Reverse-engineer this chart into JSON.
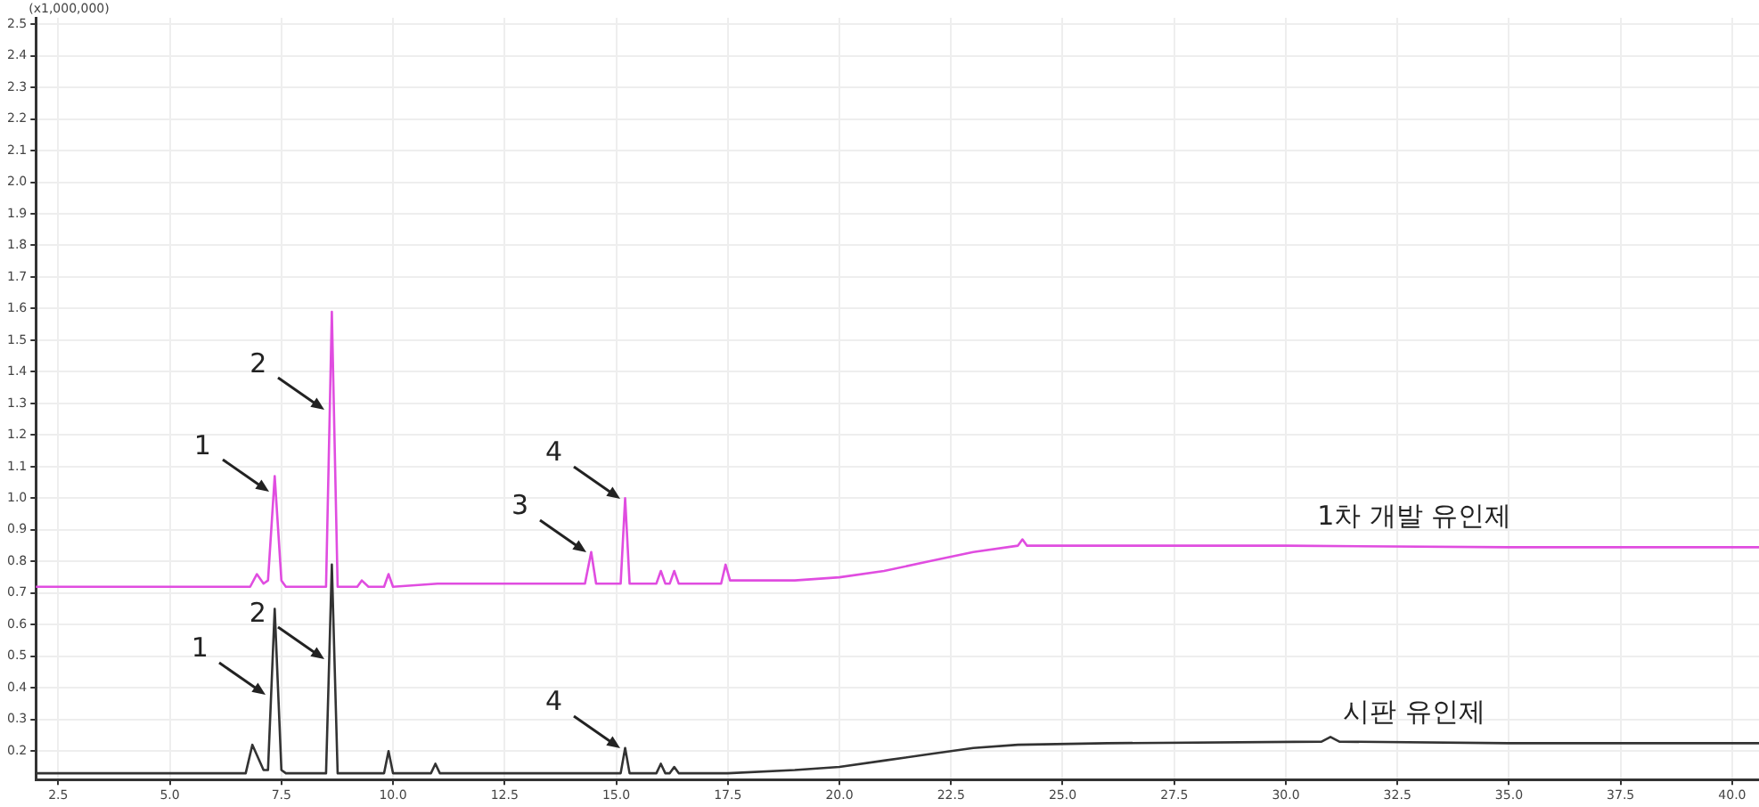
{
  "chart_data": {
    "type": "line",
    "ylabel": "(x1,000,000)",
    "xlim": [
      2.0,
      40.6
    ],
    "ylim": [
      0.11,
      2.52
    ],
    "xticks": [
      2.5,
      {
        "value": 5,
        "label": "5.0"
      },
      7.5,
      {
        "value": 10,
        "label": "10.0"
      },
      12.5,
      {
        "value": 15,
        "label": "15.0"
      },
      17.5,
      {
        "value": 20,
        "label": "20.0"
      },
      22.5,
      {
        "value": 25,
        "label": "25.0"
      },
      27.5,
      {
        "value": 30,
        "label": "30.0"
      },
      32.5,
      {
        "value": 35,
        "label": "35.0"
      },
      37.5,
      {
        "value": 40,
        "label": "40.0"
      }
    ],
    "yticks": [
      0.2,
      0.3,
      0.4,
      0.5,
      0.6,
      0.7,
      0.8,
      0.9,
      {
        "value": 1,
        "label": "1.0"
      },
      1.1,
      1.2,
      1.3,
      1.4,
      1.5,
      1.6,
      1.7,
      1.8,
      1.9,
      {
        "value": 2,
        "label": "2.0"
      },
      2.1,
      2.2,
      2.3,
      2.4,
      2.5
    ],
    "grid": true,
    "legend": false,
    "marker": "none",
    "line_style": "solid",
    "series": [
      {
        "name": "1차 개발 유인제",
        "color": "#e04de0",
        "x": [
          2.0,
          5,
          6.8,
          6.95,
          7.1,
          7.2,
          7.35,
          7.5,
          7.6,
          8.5,
          8.63,
          8.76,
          9.2,
          9.3,
          9.45,
          9.8,
          9.9,
          10.0,
          11.0,
          12.5,
          14.3,
          14.44,
          14.55,
          15.1,
          15.2,
          15.3,
          15.9,
          16.0,
          16.1,
          16.2,
          16.3,
          16.4,
          17.35,
          17.45,
          17.55,
          19,
          20,
          21,
          22,
          23,
          24,
          24.1,
          24.2,
          25,
          27.5,
          30,
          35,
          40.6
        ],
        "values": [
          0.72,
          0.72,
          0.72,
          0.76,
          0.73,
          0.74,
          1.07,
          0.74,
          0.72,
          0.72,
          1.59,
          0.72,
          0.72,
          0.74,
          0.72,
          0.72,
          0.76,
          0.72,
          0.73,
          0.73,
          0.73,
          0.83,
          0.73,
          0.73,
          1.0,
          0.73,
          0.73,
          0.77,
          0.73,
          0.73,
          0.77,
          0.73,
          0.73,
          0.79,
          0.74,
          0.74,
          0.75,
          0.77,
          0.8,
          0.83,
          0.85,
          0.87,
          0.85,
          0.85,
          0.85,
          0.85,
          0.845,
          0.845
        ]
      },
      {
        "name": "시판 유인제",
        "color": "#333333",
        "x": [
          2.0,
          6.7,
          6.85,
          7.1,
          7.2,
          7.35,
          7.5,
          7.6,
          8.5,
          8.63,
          8.76,
          9.8,
          9.9,
          10.0,
          10.85,
          10.95,
          11.05,
          15.1,
          15.2,
          15.3,
          15.9,
          16.0,
          16.1,
          16.2,
          16.3,
          16.4,
          17.5,
          19,
          20,
          21,
          22,
          23,
          24,
          26,
          30.8,
          31.0,
          31.2,
          35,
          40.6
        ],
        "values": [
          0.13,
          0.13,
          0.22,
          0.14,
          0.14,
          0.65,
          0.14,
          0.13,
          0.13,
          0.79,
          0.13,
          0.13,
          0.2,
          0.13,
          0.13,
          0.16,
          0.13,
          0.13,
          0.21,
          0.13,
          0.13,
          0.16,
          0.13,
          0.13,
          0.15,
          0.13,
          0.13,
          0.14,
          0.15,
          0.17,
          0.19,
          0.21,
          0.22,
          0.225,
          0.23,
          0.245,
          0.23,
          0.225,
          0.225
        ]
      }
    ],
    "annotations": [
      {
        "text": "1",
        "x": 7.33,
        "y": 1.02
      },
      {
        "text": "2",
        "x": 8.58,
        "y": 1.28
      },
      {
        "text": "3",
        "x": 14.44,
        "y": 0.83
      },
      {
        "text": "4",
        "x": 15.2,
        "y": 1.0
      },
      {
        "text": "1",
        "x": 7.27,
        "y": 0.38
      },
      {
        "text": "2",
        "x": 8.57,
        "y": 0.49
      },
      {
        "text": "4",
        "x": 15.2,
        "y": 0.21
      }
    ]
  }
}
